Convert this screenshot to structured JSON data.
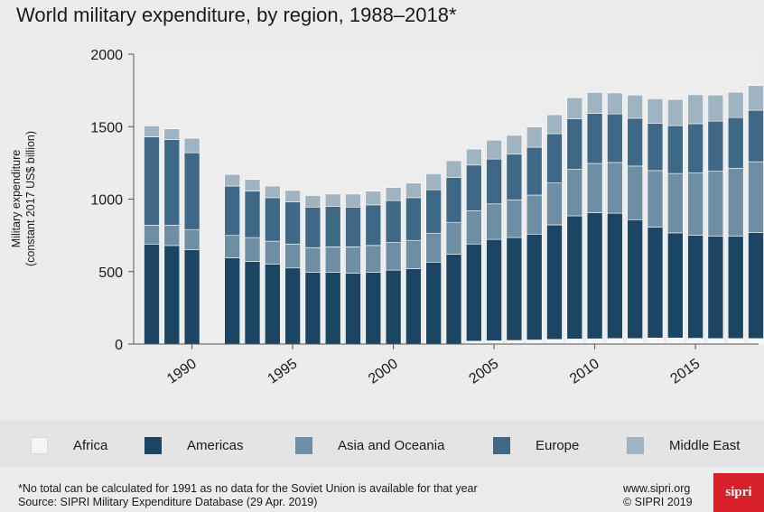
{
  "chart_data": {
    "type": "bar",
    "stacked": true,
    "title": "World military expenditure, by region, 1988–2018*",
    "ylabel": [
      "Military expenditure",
      "(constant 2017 US$ billion)"
    ],
    "xlabel": "",
    "ylim": [
      0,
      2000
    ],
    "yticks": [
      "0",
      "500",
      "1000",
      "1500",
      "2000"
    ],
    "xticks": [
      "1990",
      "1995",
      "2000",
      "2005",
      "2010",
      "2015"
    ],
    "x": [
      1988,
      1989,
      1990,
      1992,
      1993,
      1994,
      1995,
      1996,
      1997,
      1998,
      1999,
      2000,
      2001,
      2002,
      2003,
      2004,
      2005,
      2006,
      2007,
      2008,
      2009,
      2010,
      2011,
      2012,
      2013,
      2014,
      2015,
      2016,
      2017,
      2018
    ],
    "missing": [
      1991
    ],
    "grid": false,
    "series": [
      {
        "name": "Africa",
        "color": "#f4f6f5",
        "values": [
          0,
          0,
          0,
          0,
          0,
          0,
          0,
          0,
          0,
          0,
          0,
          0,
          0,
          0,
          0,
          20,
          22,
          25,
          28,
          32,
          35,
          36,
          38,
          38,
          42,
          42,
          40,
          38,
          38,
          38
        ]
      },
      {
        "name": "Americas",
        "color": "#1b4563",
        "values": [
          690,
          680,
          650,
          595,
          570,
          550,
          525,
          495,
          495,
          490,
          495,
          510,
          520,
          565,
          620,
          670,
          700,
          710,
          730,
          790,
          850,
          870,
          865,
          820,
          765,
          725,
          710,
          705,
          705,
          730
        ]
      },
      {
        "name": "Asia and Oceania",
        "color": "#6e8ea3",
        "values": [
          130,
          140,
          140,
          155,
          165,
          160,
          165,
          170,
          175,
          180,
          185,
          190,
          195,
          200,
          220,
          230,
          245,
          260,
          270,
          290,
          320,
          340,
          350,
          370,
          390,
          410,
          430,
          450,
          470,
          490
        ]
      },
      {
        "name": "Europe",
        "color": "#3e6885",
        "values": [
          610,
          590,
          530,
          340,
          320,
          300,
          290,
          280,
          280,
          275,
          280,
          290,
          295,
          300,
          310,
          315,
          310,
          315,
          330,
          340,
          350,
          345,
          335,
          330,
          325,
          330,
          340,
          345,
          350,
          355
        ]
      },
      {
        "name": "Middle East",
        "color": "#9fb3c0",
        "values": [
          75,
          75,
          100,
          80,
          80,
          80,
          80,
          80,
          85,
          90,
          95,
          90,
          100,
          110,
          115,
          110,
          130,
          130,
          140,
          130,
          145,
          145,
          145,
          160,
          170,
          180,
          200,
          180,
          175,
          170
        ]
      }
    ]
  },
  "footnote": "*No total can be calculated for 1991 as no data for the Soviet Union is available for that year",
  "source": "Source: SIPRI Military Expenditure Database (29 Apr. 2019)",
  "website": "www.sipri.org",
  "copyright": "© SIPRI 2019",
  "logo_text": "sipri"
}
